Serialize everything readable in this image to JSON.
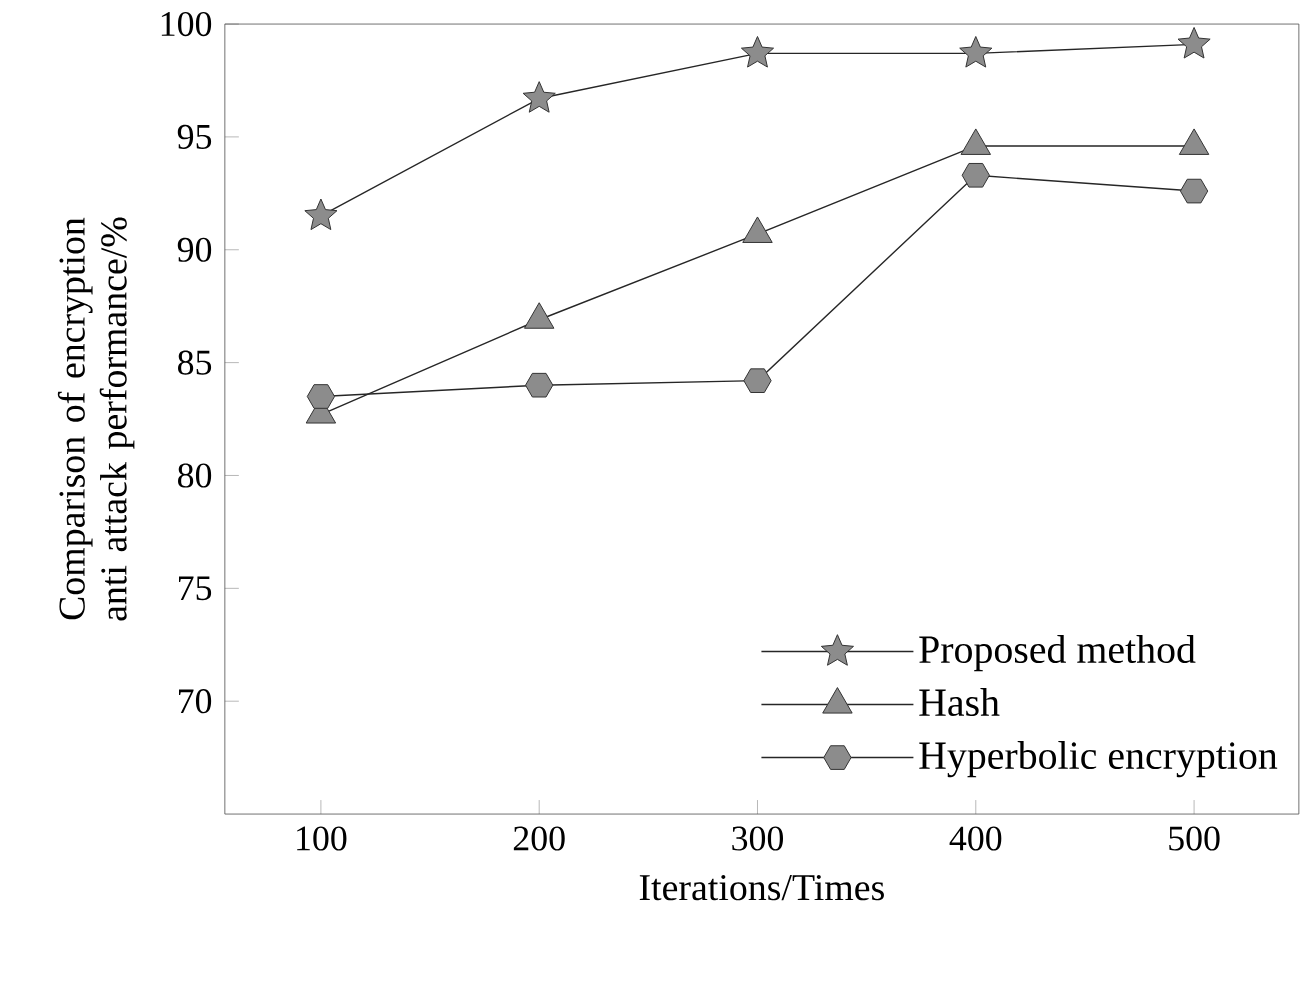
{
  "chart_data": {
    "type": "line",
    "xlabel": "Iterations/Times",
    "ylabel": "Comparison of encryption anti attack performance/%",
    "x": [
      100,
      200,
      300,
      400,
      500
    ],
    "series": [
      {
        "name": "Proposed method",
        "color": "#8c8c8c",
        "marker": "star",
        "values": [
          91.5,
          96.7,
          98.7,
          98.7,
          99.1
        ]
      },
      {
        "name": "Hash",
        "color": "#8c8c8c",
        "marker": "triangle",
        "values": [
          82.7,
          86.9,
          90.7,
          94.6,
          94.6
        ]
      },
      {
        "name": "Hyperbolic encryption",
        "color": "#8c8c8c",
        "marker": "circle",
        "values": [
          83.5,
          84.0,
          84.2,
          93.3,
          92.6
        ]
      }
    ],
    "xlim": [
      56,
      548
    ],
    "ylim": [
      65,
      100
    ],
    "xticks": [
      100,
      200,
      300,
      400,
      500
    ],
    "yticks": [
      70,
      75,
      80,
      85,
      90,
      95,
      100
    ],
    "grid": false,
    "legend": "bottom right",
    "line_style": "solid"
  }
}
